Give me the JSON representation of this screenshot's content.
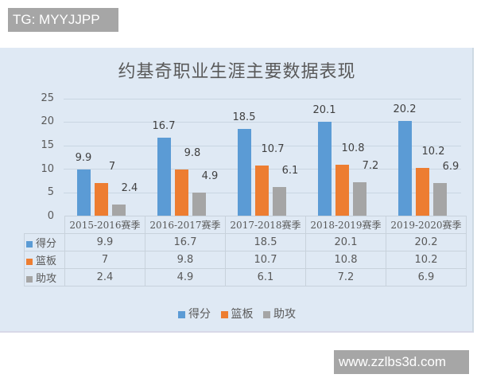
{
  "watermarks": {
    "top": "TG: MYYJJPP",
    "bottom": "www.zzlbs3d.com"
  },
  "colors": {
    "points": "#5b9bd5",
    "rebounds": "#ed7d31",
    "assists": "#a5a5a5",
    "background": "#dfe9f4"
  },
  "chart": {
    "title": "约基奇职业生涯主要数据表现",
    "y_ticks": [
      "25",
      "20",
      "15",
      "10",
      "5",
      "0"
    ],
    "categories": [
      "2015-2016赛季",
      "2016-2017赛季",
      "2017-2018赛季",
      "2018-2019赛季",
      "2019-2020赛季"
    ],
    "series": [
      {
        "name": "得分",
        "values": [
          "9.9",
          "16.7",
          "18.5",
          "20.1",
          "20.2"
        ]
      },
      {
        "name": "篮板",
        "values": [
          "7",
          "9.8",
          "10.7",
          "10.8",
          "10.2"
        ]
      },
      {
        "name": "助攻",
        "values": [
          "2.4",
          "4.9",
          "6.1",
          "7.2",
          "6.9"
        ]
      }
    ],
    "legend": [
      "得分",
      "篮板",
      "助攻"
    ]
  },
  "chart_data": {
    "type": "bar",
    "title": "约基奇职业生涯主要数据表现",
    "categories": [
      "2015-2016赛季",
      "2016-2017赛季",
      "2017-2018赛季",
      "2018-2019赛季",
      "2019-2020赛季"
    ],
    "series": [
      {
        "name": "得分",
        "values": [
          9.9,
          16.7,
          18.5,
          20.1,
          20.2
        ]
      },
      {
        "name": "篮板",
        "values": [
          7,
          9.8,
          10.7,
          10.8,
          10.2
        ]
      },
      {
        "name": "助攻",
        "values": [
          2.4,
          4.9,
          6.1,
          7.2,
          6.9
        ]
      }
    ],
    "xlabel": "",
    "ylabel": "",
    "ylim": [
      0,
      25
    ],
    "yticks": [
      0,
      5,
      10,
      15,
      20,
      25
    ],
    "grid": true,
    "legend_position": "bottom",
    "data_table": true,
    "data_labels": true
  }
}
